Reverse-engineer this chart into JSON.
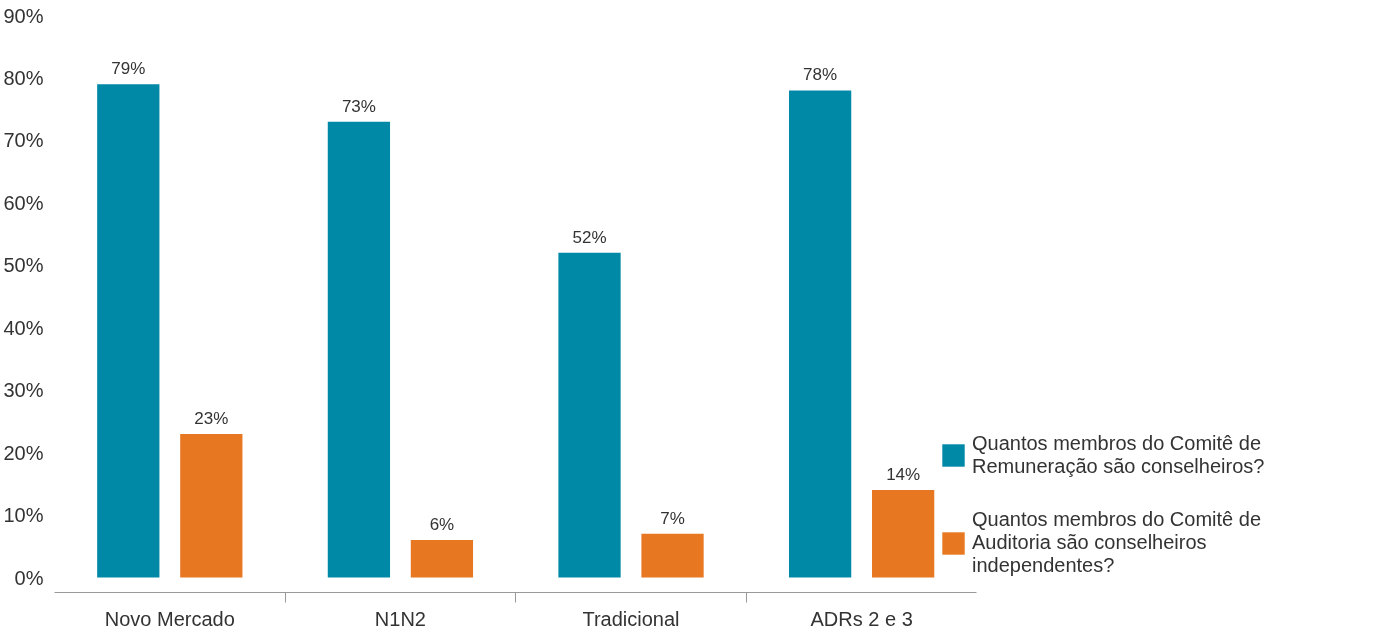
{
  "chart_data": {
    "type": "bar",
    "categories": [
      "Novo Mercado",
      "N1N2",
      "Tradicional",
      "ADRs 2 e 3"
    ],
    "series": [
      {
        "name": "Quantos membros do Comitê de Remuneração são conselheiros?",
        "color": "#0089a7",
        "values": [
          79,
          73,
          52,
          78
        ],
        "value_labels": [
          "79%",
          "73%",
          "52%",
          "78%"
        ]
      },
      {
        "name": "Quantos membros do Comitê de Auditoria são conselheiros independentes?",
        "color": "#e87722",
        "values": [
          23,
          6,
          7,
          14
        ],
        "value_labels": [
          "23%",
          "6%",
          "7%",
          "14%"
        ]
      }
    ],
    "ylim": [
      -2.4,
      90
    ],
    "yticks": [
      {
        "value": 0,
        "label": "0%"
      },
      {
        "value": 10,
        "label": "10%"
      },
      {
        "value": 20,
        "label": "20%"
      },
      {
        "value": 30,
        "label": "30%"
      },
      {
        "value": 40,
        "label": "40%"
      },
      {
        "value": 50,
        "label": "50%"
      },
      {
        "value": 60,
        "label": "60%"
      },
      {
        "value": 70,
        "label": "70%"
      },
      {
        "value": 80,
        "label": "80%"
      },
      {
        "value": 90,
        "label": "90%"
      }
    ],
    "grid": false,
    "legend": "right"
  }
}
